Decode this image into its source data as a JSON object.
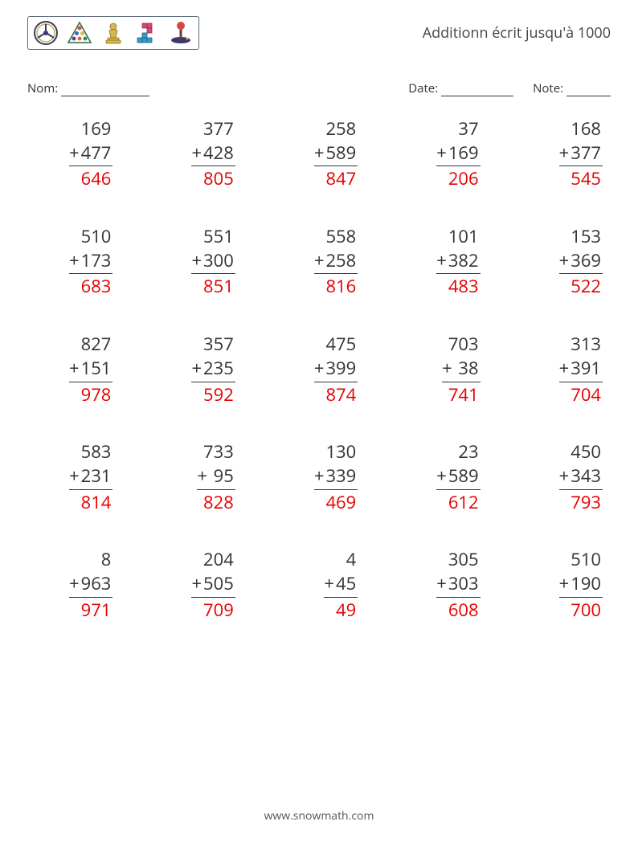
{
  "title": "Additionn écrit jusqu'à 1000",
  "form": {
    "name_label": "Nom:",
    "date_label": "Date:",
    "note_label": "Note:",
    "name_width": 110,
    "date_width": 90,
    "note_width": 55
  },
  "footer": "www.snowmath.com",
  "style": {
    "problem_fontsize": 22,
    "title_fontsize": 18,
    "text_color": "#333333",
    "answer_color": "#e60000",
    "border_color": "#5a6a7a",
    "background": "#ffffff",
    "columns": 5,
    "rows": 5,
    "operation_symbol": "+"
  },
  "problems": [
    {
      "a": "169",
      "b": "477",
      "ans": "646"
    },
    {
      "a": "377",
      "b": "428",
      "ans": "805"
    },
    {
      "a": "258",
      "b": "589",
      "ans": "847"
    },
    {
      "a": "37",
      "b": "169",
      "ans": "206"
    },
    {
      "a": "168",
      "b": "377",
      "ans": "545"
    },
    {
      "a": "510",
      "b": "173",
      "ans": "683"
    },
    {
      "a": "551",
      "b": "300",
      "ans": "851"
    },
    {
      "a": "558",
      "b": "258",
      "ans": "816"
    },
    {
      "a": "101",
      "b": "382",
      "ans": "483"
    },
    {
      "a": "153",
      "b": "369",
      "ans": "522"
    },
    {
      "a": "827",
      "b": "151",
      "ans": "978"
    },
    {
      "a": "357",
      "b": "235",
      "ans": "592"
    },
    {
      "a": "475",
      "b": "399",
      "ans": "874"
    },
    {
      "a": "703",
      "b": " 38",
      "ans": "741"
    },
    {
      "a": "313",
      "b": "391",
      "ans": "704"
    },
    {
      "a": "583",
      "b": "231",
      "ans": "814"
    },
    {
      "a": "733",
      "b": " 95",
      "ans": "828"
    },
    {
      "a": "130",
      "b": "339",
      "ans": "469"
    },
    {
      "a": "23",
      "b": "589",
      "ans": "612"
    },
    {
      "a": "450",
      "b": "343",
      "ans": "793"
    },
    {
      "a": "8",
      "b": "963",
      "ans": "971"
    },
    {
      "a": "204",
      "b": "505",
      "ans": "709"
    },
    {
      "a": "4",
      "b": "45",
      "ans": "49"
    },
    {
      "a": "305",
      "b": "303",
      "ans": "608"
    },
    {
      "a": "510",
      "b": "190",
      "ans": "700"
    }
  ]
}
